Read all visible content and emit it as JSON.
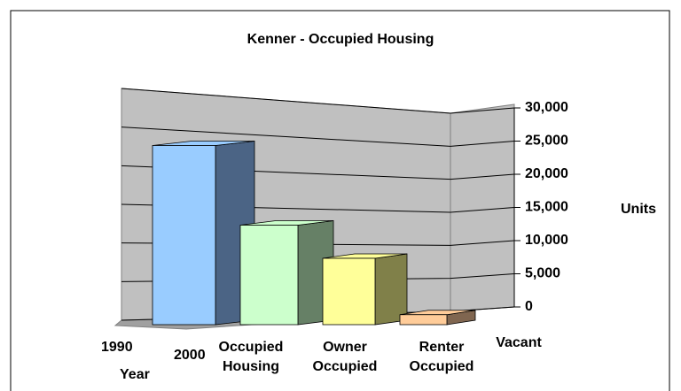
{
  "chart_data": {
    "type": "bar3d",
    "title": "Kenner - Occupied Housing",
    "categories": [
      "Occupied Housing",
      "Owner Occupied",
      "Renter Occupied",
      "Vacant"
    ],
    "values": [
      27000,
      15000,
      10000,
      1500
    ],
    "colors": [
      "#99ccff",
      "#ccffcc",
      "#ffff99",
      "#ffcc99"
    ],
    "side_colors": [
      "#4b6485",
      "#668066",
      "#808049",
      "#806650"
    ],
    "depth_categories": [
      "1990",
      "2000"
    ],
    "depth_title": "Year",
    "y_label": "Units",
    "ylim": [
      0,
      30000
    ],
    "yticks": [
      {
        "value": 0,
        "label": "0"
      },
      {
        "value": 5000,
        "label": "5,000"
      },
      {
        "value": 10000,
        "label": "10,000"
      },
      {
        "value": 15000,
        "label": "15,000"
      },
      {
        "value": 20000,
        "label": "20,000"
      },
      {
        "value": 25000,
        "label": "25,000"
      },
      {
        "value": 30000,
        "label": "30,000"
      }
    ],
    "grid": true
  }
}
